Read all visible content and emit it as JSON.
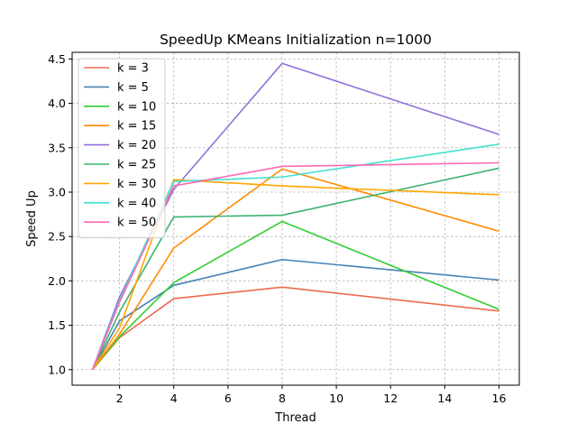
{
  "chart_data": {
    "type": "line",
    "title": "SpeedUp KMeans Initialization n=1000",
    "xlabel": "Thread",
    "ylabel": "Speed Up",
    "xlim": [
      0.25,
      16.75
    ],
    "ylim": [
      0.825,
      4.575
    ],
    "xticks": [
      2,
      4,
      6,
      8,
      10,
      12,
      14,
      16
    ],
    "yticks": [
      1.0,
      1.5,
      2.0,
      2.5,
      3.0,
      3.5,
      4.0,
      4.5
    ],
    "x": [
      1,
      2,
      4,
      8,
      16
    ],
    "grid": true,
    "legend_position": "upper-left",
    "series": [
      {
        "name": "k = 3",
        "color": "#ee6a50",
        "values": [
          1.0,
          1.36,
          1.8,
          1.93,
          1.66
        ]
      },
      {
        "name": "k = 5",
        "color": "#4682b4",
        "values": [
          1.0,
          1.55,
          1.95,
          2.24,
          2.01
        ]
      },
      {
        "name": "k = 10",
        "color": "#32cd32",
        "values": [
          1.0,
          1.37,
          1.98,
          2.67,
          1.68
        ]
      },
      {
        "name": "k = 15",
        "color": "#ff8c00",
        "values": [
          1.0,
          1.4,
          2.37,
          3.26,
          2.56
        ]
      },
      {
        "name": "k = 20",
        "color": "#9370db",
        "values": [
          1.0,
          1.82,
          3.03,
          4.45,
          3.65
        ]
      },
      {
        "name": "k = 25",
        "color": "#3cb371",
        "values": [
          1.0,
          1.65,
          2.72,
          2.74,
          3.27
        ]
      },
      {
        "name": "k = 30",
        "color": "#ffa500",
        "values": [
          1.0,
          1.47,
          3.14,
          3.07,
          2.97
        ]
      },
      {
        "name": "k = 40",
        "color": "#40e0d0",
        "values": [
          1.0,
          1.78,
          3.12,
          3.17,
          3.54
        ]
      },
      {
        "name": "k = 50",
        "color": "#ff69b4",
        "values": [
          1.0,
          1.76,
          3.07,
          3.29,
          3.33
        ]
      }
    ]
  }
}
